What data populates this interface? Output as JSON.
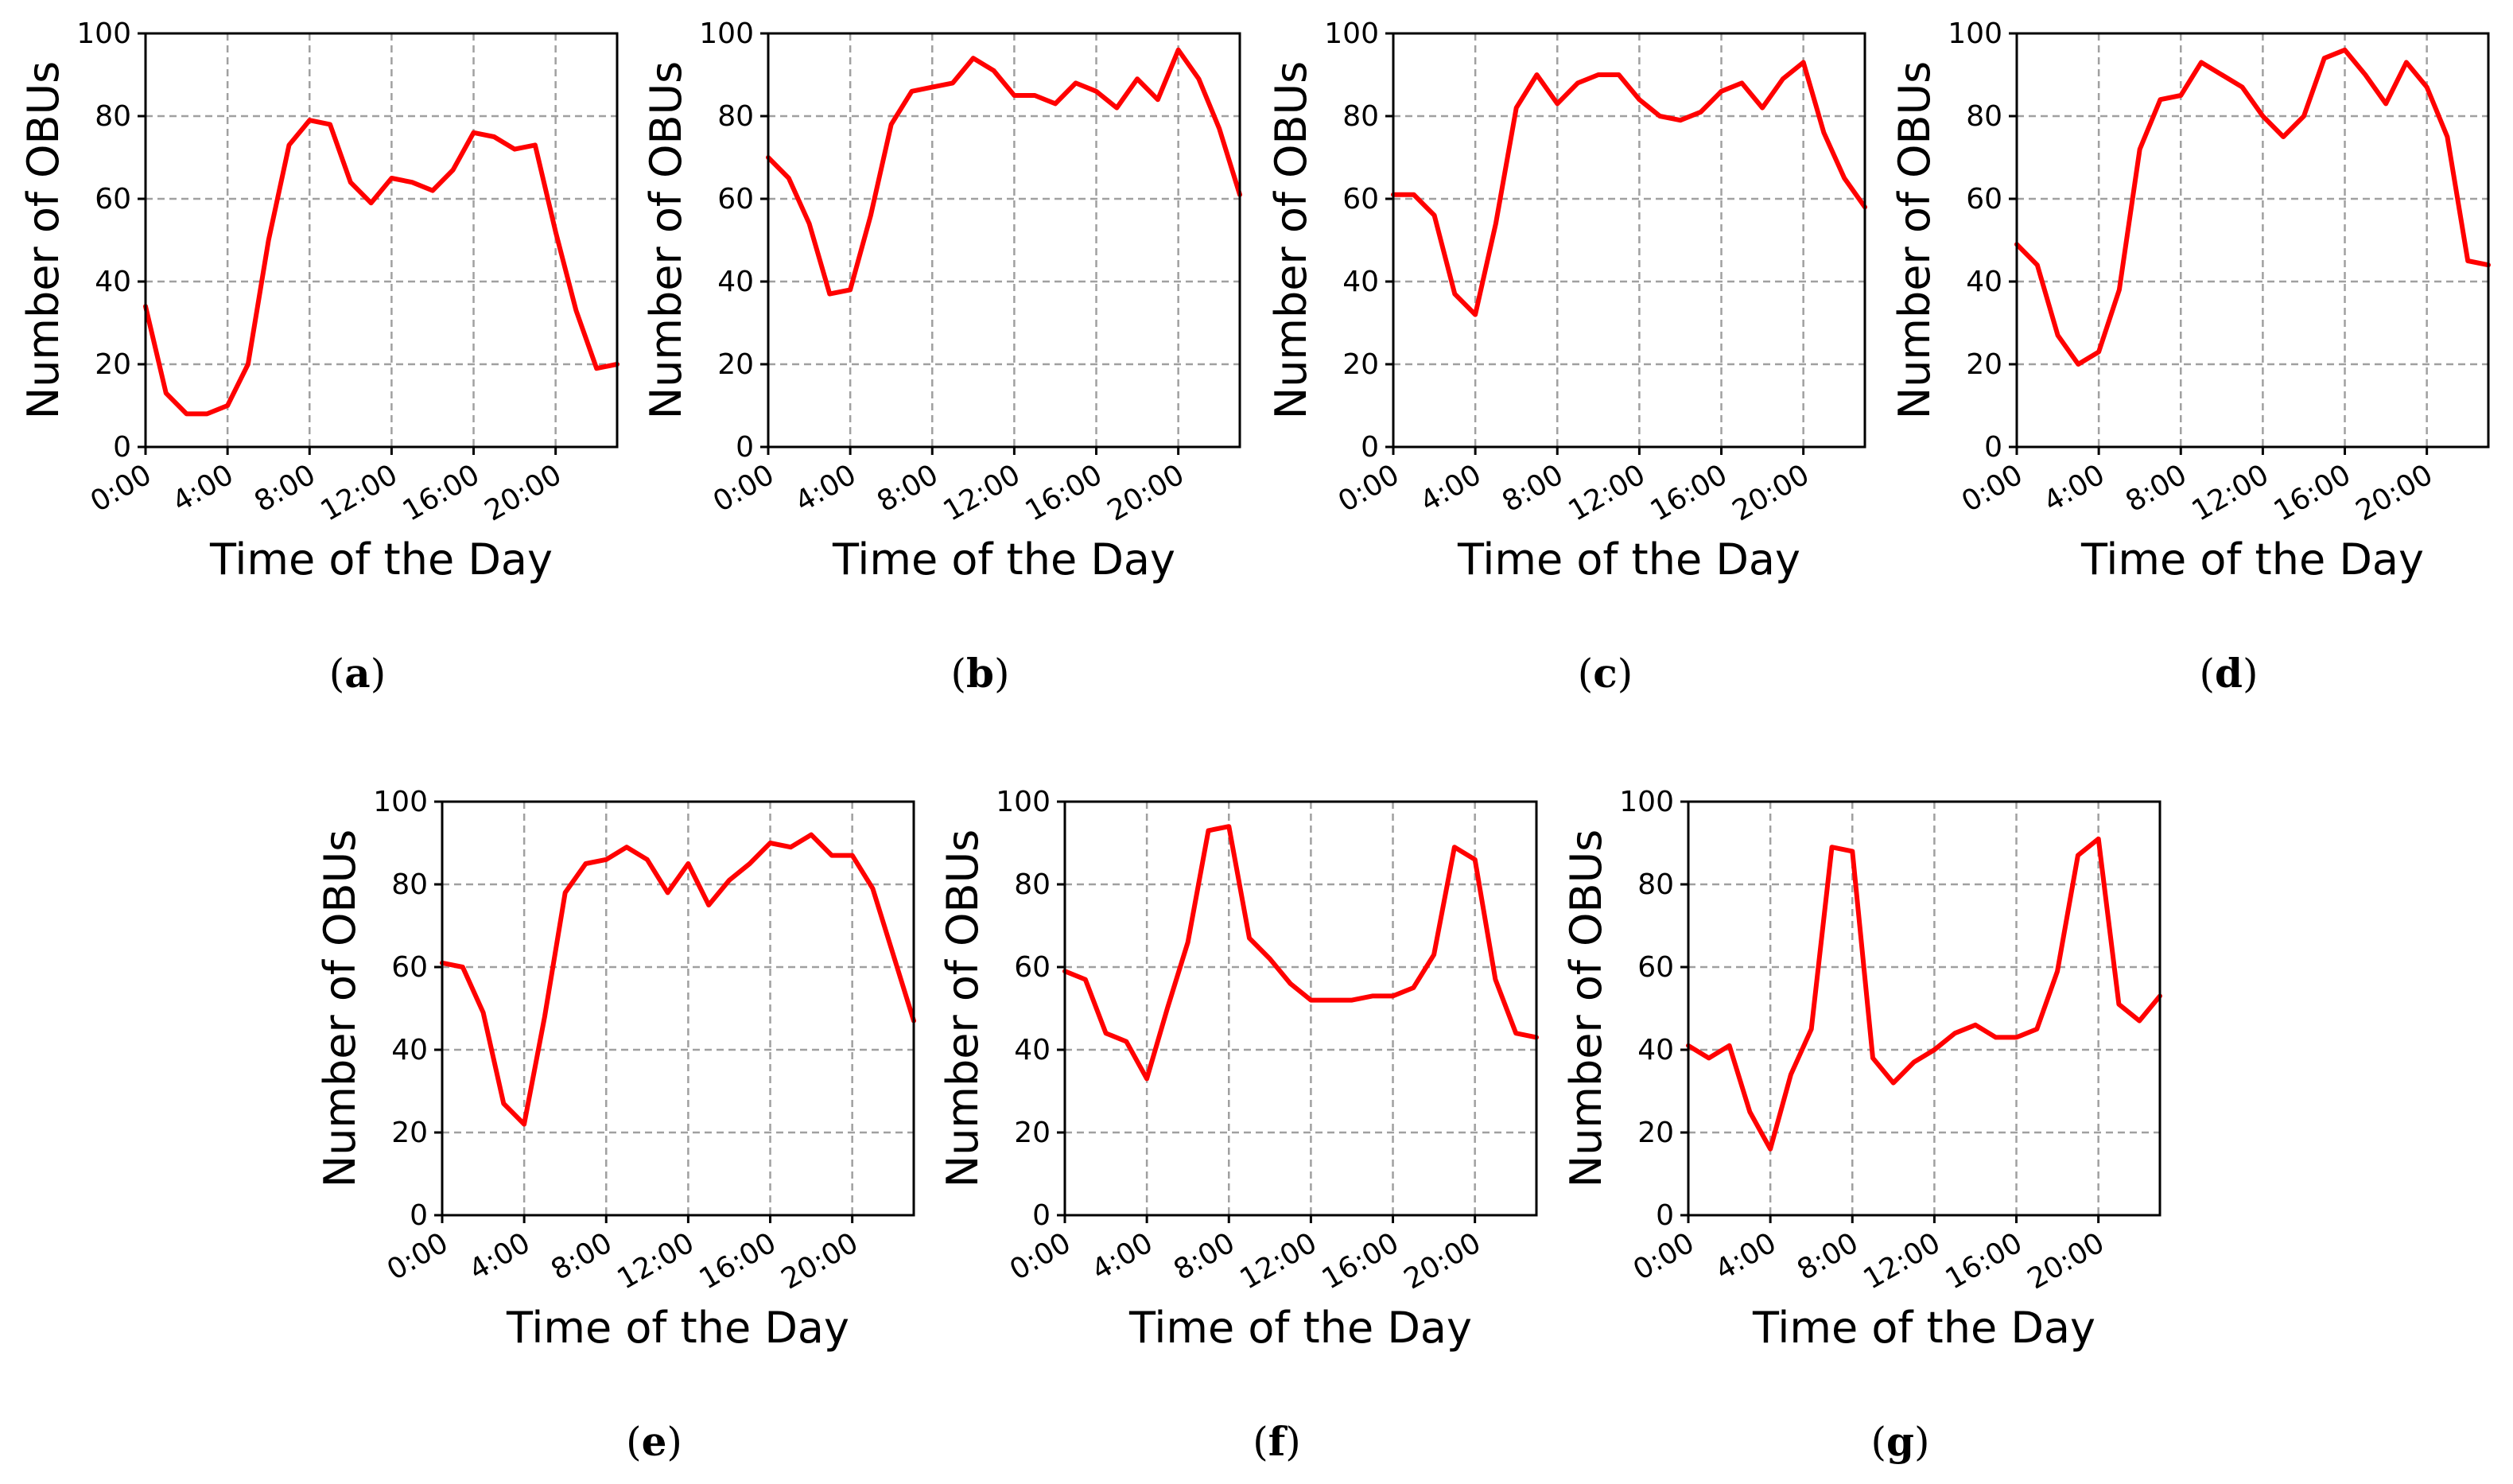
{
  "figure": {
    "description_label": "Number of OBUs over the day, seven panels"
  },
  "colors": {
    "series": "#ff0000",
    "grid": "#a0a0a0",
    "axis": "#000000"
  },
  "chart_data": [
    {
      "type": "line",
      "panel": "a",
      "caption_letter": "a",
      "xlabel": "Time of the Day",
      "ylabel": "Number of OBUs",
      "xlim": [
        0,
        23
      ],
      "ylim": [
        0,
        100
      ],
      "x_ticks": [
        0,
        4,
        8,
        12,
        16,
        20
      ],
      "x_tick_labels": [
        "0:00",
        "4:00",
        "8:00",
        "12:00",
        "16:00",
        "20:00"
      ],
      "y_ticks": [
        0,
        20,
        40,
        60,
        80,
        100
      ],
      "y_tick_labels": [
        "0",
        "20",
        "40",
        "60",
        "80",
        "100"
      ],
      "grid": true,
      "x": [
        0,
        1,
        2,
        3,
        4,
        5,
        6,
        7,
        8,
        9,
        10,
        11,
        12,
        13,
        14,
        15,
        16,
        17,
        18,
        19,
        20,
        21,
        22,
        23
      ],
      "values": [
        34,
        13,
        8,
        8,
        10,
        20,
        50,
        73,
        79,
        78,
        64,
        59,
        65,
        64,
        62,
        67,
        76,
        75,
        72,
        73,
        52,
        33,
        19,
        20
      ]
    },
    {
      "type": "line",
      "panel": "b",
      "caption_letter": "b",
      "xlabel": "Time of the Day",
      "ylabel": "Number of OBUs",
      "xlim": [
        0,
        23
      ],
      "ylim": [
        0,
        100
      ],
      "x_ticks": [
        0,
        4,
        8,
        12,
        16,
        20
      ],
      "x_tick_labels": [
        "0:00",
        "4:00",
        "8:00",
        "12:00",
        "16:00",
        "20:00"
      ],
      "y_ticks": [
        0,
        20,
        40,
        60,
        80,
        100
      ],
      "y_tick_labels": [
        "0",
        "20",
        "40",
        "60",
        "80",
        "100"
      ],
      "grid": true,
      "x": [
        0,
        1,
        2,
        3,
        4,
        5,
        6,
        7,
        8,
        9,
        10,
        11,
        12,
        13,
        14,
        15,
        16,
        17,
        18,
        19,
        20,
        21,
        22,
        23
      ],
      "values": [
        70,
        65,
        54,
        37,
        38,
        56,
        78,
        86,
        87,
        88,
        94,
        91,
        85,
        85,
        83,
        88,
        86,
        82,
        89,
        84,
        96,
        89,
        77,
        61
      ]
    },
    {
      "type": "line",
      "panel": "c",
      "caption_letter": "c",
      "xlabel": "Time of the Day",
      "ylabel": "Number of OBUs",
      "xlim": [
        0,
        23
      ],
      "ylim": [
        0,
        100
      ],
      "x_ticks": [
        0,
        4,
        8,
        12,
        16,
        20
      ],
      "x_tick_labels": [
        "0:00",
        "4:00",
        "8:00",
        "12:00",
        "16:00",
        "20:00"
      ],
      "y_ticks": [
        0,
        20,
        40,
        60,
        80,
        100
      ],
      "y_tick_labels": [
        "0",
        "20",
        "40",
        "60",
        "80",
        "100"
      ],
      "grid": true,
      "x": [
        0,
        1,
        2,
        3,
        4,
        5,
        6,
        7,
        8,
        9,
        10,
        11,
        12,
        13,
        14,
        15,
        16,
        17,
        18,
        19,
        20,
        21,
        22,
        23
      ],
      "values": [
        61,
        61,
        56,
        37,
        32,
        54,
        82,
        90,
        83,
        88,
        90,
        90,
        84,
        80,
        79,
        81,
        86,
        88,
        82,
        89,
        93,
        76,
        65,
        58
      ]
    },
    {
      "type": "line",
      "panel": "d",
      "caption_letter": "d",
      "xlabel": "Time of the Day",
      "ylabel": "Number of OBUs",
      "xlim": [
        0,
        23
      ],
      "ylim": [
        0,
        100
      ],
      "x_ticks": [
        0,
        4,
        8,
        12,
        16,
        20
      ],
      "x_tick_labels": [
        "0:00",
        "4:00",
        "8:00",
        "12:00",
        "16:00",
        "20:00"
      ],
      "y_ticks": [
        0,
        20,
        40,
        60,
        80,
        100
      ],
      "y_tick_labels": [
        "0",
        "20",
        "40",
        "60",
        "80",
        "100"
      ],
      "grid": true,
      "x": [
        0,
        1,
        2,
        3,
        4,
        5,
        6,
        7,
        8,
        9,
        10,
        11,
        12,
        13,
        14,
        15,
        16,
        17,
        18,
        19,
        20,
        21,
        22,
        23
      ],
      "values": [
        49,
        44,
        27,
        20,
        23,
        38,
        72,
        84,
        85,
        93,
        90,
        87,
        80,
        75,
        80,
        94,
        96,
        90,
        83,
        93,
        87,
        75,
        45,
        44
      ]
    },
    {
      "type": "line",
      "panel": "e",
      "caption_letter": "e",
      "xlabel": "Time of the Day",
      "ylabel": "Number of OBUs",
      "xlim": [
        0,
        23
      ],
      "ylim": [
        0,
        100
      ],
      "x_ticks": [
        0,
        4,
        8,
        12,
        16,
        20
      ],
      "x_tick_labels": [
        "0:00",
        "4:00",
        "8:00",
        "12:00",
        "16:00",
        "20:00"
      ],
      "y_ticks": [
        0,
        20,
        40,
        60,
        80,
        100
      ],
      "y_tick_labels": [
        "0",
        "20",
        "40",
        "60",
        "80",
        "100"
      ],
      "grid": true,
      "x": [
        0,
        1,
        2,
        3,
        4,
        5,
        6,
        7,
        8,
        9,
        10,
        11,
        12,
        13,
        14,
        15,
        16,
        17,
        18,
        19,
        20,
        21,
        22,
        23
      ],
      "values": [
        61,
        60,
        49,
        27,
        22,
        48,
        78,
        85,
        86,
        89,
        86,
        78,
        85,
        75,
        81,
        85,
        90,
        89,
        92,
        87,
        87,
        79,
        63,
        47
      ]
    },
    {
      "type": "line",
      "panel": "f",
      "caption_letter": "f",
      "xlabel": "Time of the Day",
      "ylabel": "Number of OBUs",
      "xlim": [
        0,
        23
      ],
      "ylim": [
        0,
        100
      ],
      "x_ticks": [
        0,
        4,
        8,
        12,
        16,
        20
      ],
      "x_tick_labels": [
        "0:00",
        "4:00",
        "8:00",
        "12:00",
        "16:00",
        "20:00"
      ],
      "y_ticks": [
        0,
        20,
        40,
        60,
        80,
        100
      ],
      "y_tick_labels": [
        "0",
        "20",
        "40",
        "60",
        "80",
        "100"
      ],
      "grid": true,
      "x": [
        0,
        1,
        2,
        3,
        4,
        5,
        6,
        7,
        8,
        9,
        10,
        11,
        12,
        13,
        14,
        15,
        16,
        17,
        18,
        19,
        20,
        21,
        22,
        23
      ],
      "values": [
        59,
        57,
        44,
        42,
        33,
        50,
        66,
        93,
        94,
        67,
        62,
        56,
        52,
        52,
        52,
        53,
        53,
        55,
        63,
        89,
        86,
        57,
        44,
        43
      ]
    },
    {
      "type": "line",
      "panel": "g",
      "caption_letter": "g",
      "xlabel": "Time of the Day",
      "ylabel": "Number of OBUs",
      "xlim": [
        0,
        23
      ],
      "ylim": [
        0,
        100
      ],
      "x_ticks": [
        0,
        4,
        8,
        12,
        16,
        20
      ],
      "x_tick_labels": [
        "0:00",
        "4:00",
        "8:00",
        "12:00",
        "16:00",
        "20:00"
      ],
      "y_ticks": [
        0,
        20,
        40,
        60,
        80,
        100
      ],
      "y_tick_labels": [
        "0",
        "20",
        "40",
        "60",
        "80",
        "100"
      ],
      "grid": true,
      "x": [
        0,
        1,
        2,
        3,
        4,
        5,
        6,
        7,
        8,
        9,
        10,
        11,
        12,
        13,
        14,
        15,
        16,
        17,
        18,
        19,
        20,
        21,
        22,
        23
      ],
      "values": [
        41,
        38,
        41,
        25,
        16,
        34,
        45,
        89,
        88,
        38,
        32,
        37,
        40,
        44,
        46,
        43,
        43,
        45,
        59,
        87,
        91,
        51,
        47,
        53
      ]
    }
  ]
}
